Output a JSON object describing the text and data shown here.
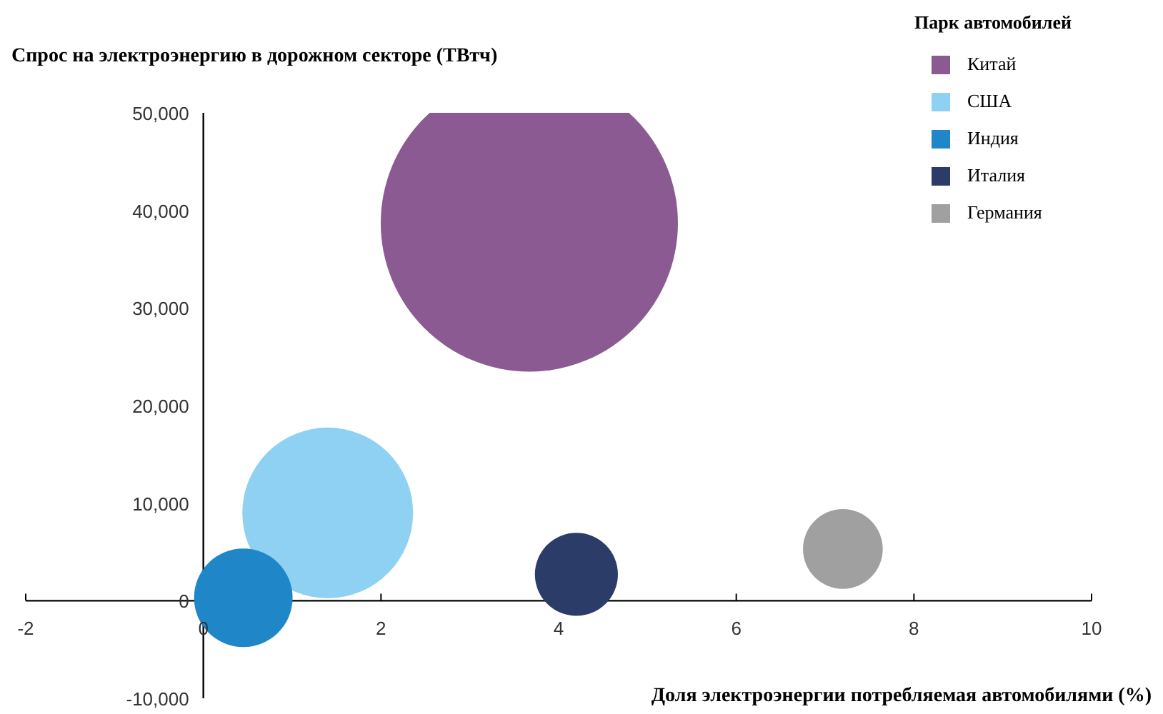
{
  "chart_data": {
    "type": "bubble",
    "ylabel": "Спрос на электроэнергию в дорожном секторе (ТВтч)",
    "xlabel": "Доля электроэнергии потребляемая автомобилями (%)",
    "legend_title": "Парк автомобилей",
    "legend": "top right",
    "grid": false,
    "xlim": [
      -2,
      10
    ],
    "xticks": [
      -2,
      0,
      2,
      4,
      6,
      8,
      10
    ],
    "ylim": [
      -10000,
      50000
    ],
    "yticks": [
      {
        "value": -10000,
        "label": "-10,000"
      },
      0,
      {
        "value": 10000,
        "label": "10,000"
      },
      {
        "value": 20000,
        "label": "20,000"
      },
      {
        "value": 30000,
        "label": "30,000"
      },
      {
        "value": 40000,
        "label": "40,000"
      },
      {
        "value": 50000,
        "label": "50,000"
      }
    ],
    "series": [
      {
        "name": "Китай",
        "color": "#8b5a92",
        "x": [
          3.67
        ],
        "values": [
          38700
        ],
        "sizes": [
          1
        ]
      },
      {
        "name": "США",
        "color": "#8fd1f2",
        "x": [
          1.4
        ],
        "values": [
          9000
        ],
        "sizes": [
          0.33
        ]
      },
      {
        "name": "Индия",
        "color": "#1f86c8",
        "x": [
          0.45
        ],
        "values": [
          300
        ],
        "sizes": [
          0.11
        ]
      },
      {
        "name": "Италия",
        "color": "#2b3c69",
        "x": [
          4.2
        ],
        "values": [
          2700
        ],
        "sizes": [
          0.078
        ]
      },
      {
        "name": "Германия",
        "color": "#a0a0a0",
        "x": [
          7.2
        ],
        "values": [
          5300
        ],
        "sizes": [
          0.072
        ]
      }
    ]
  }
}
